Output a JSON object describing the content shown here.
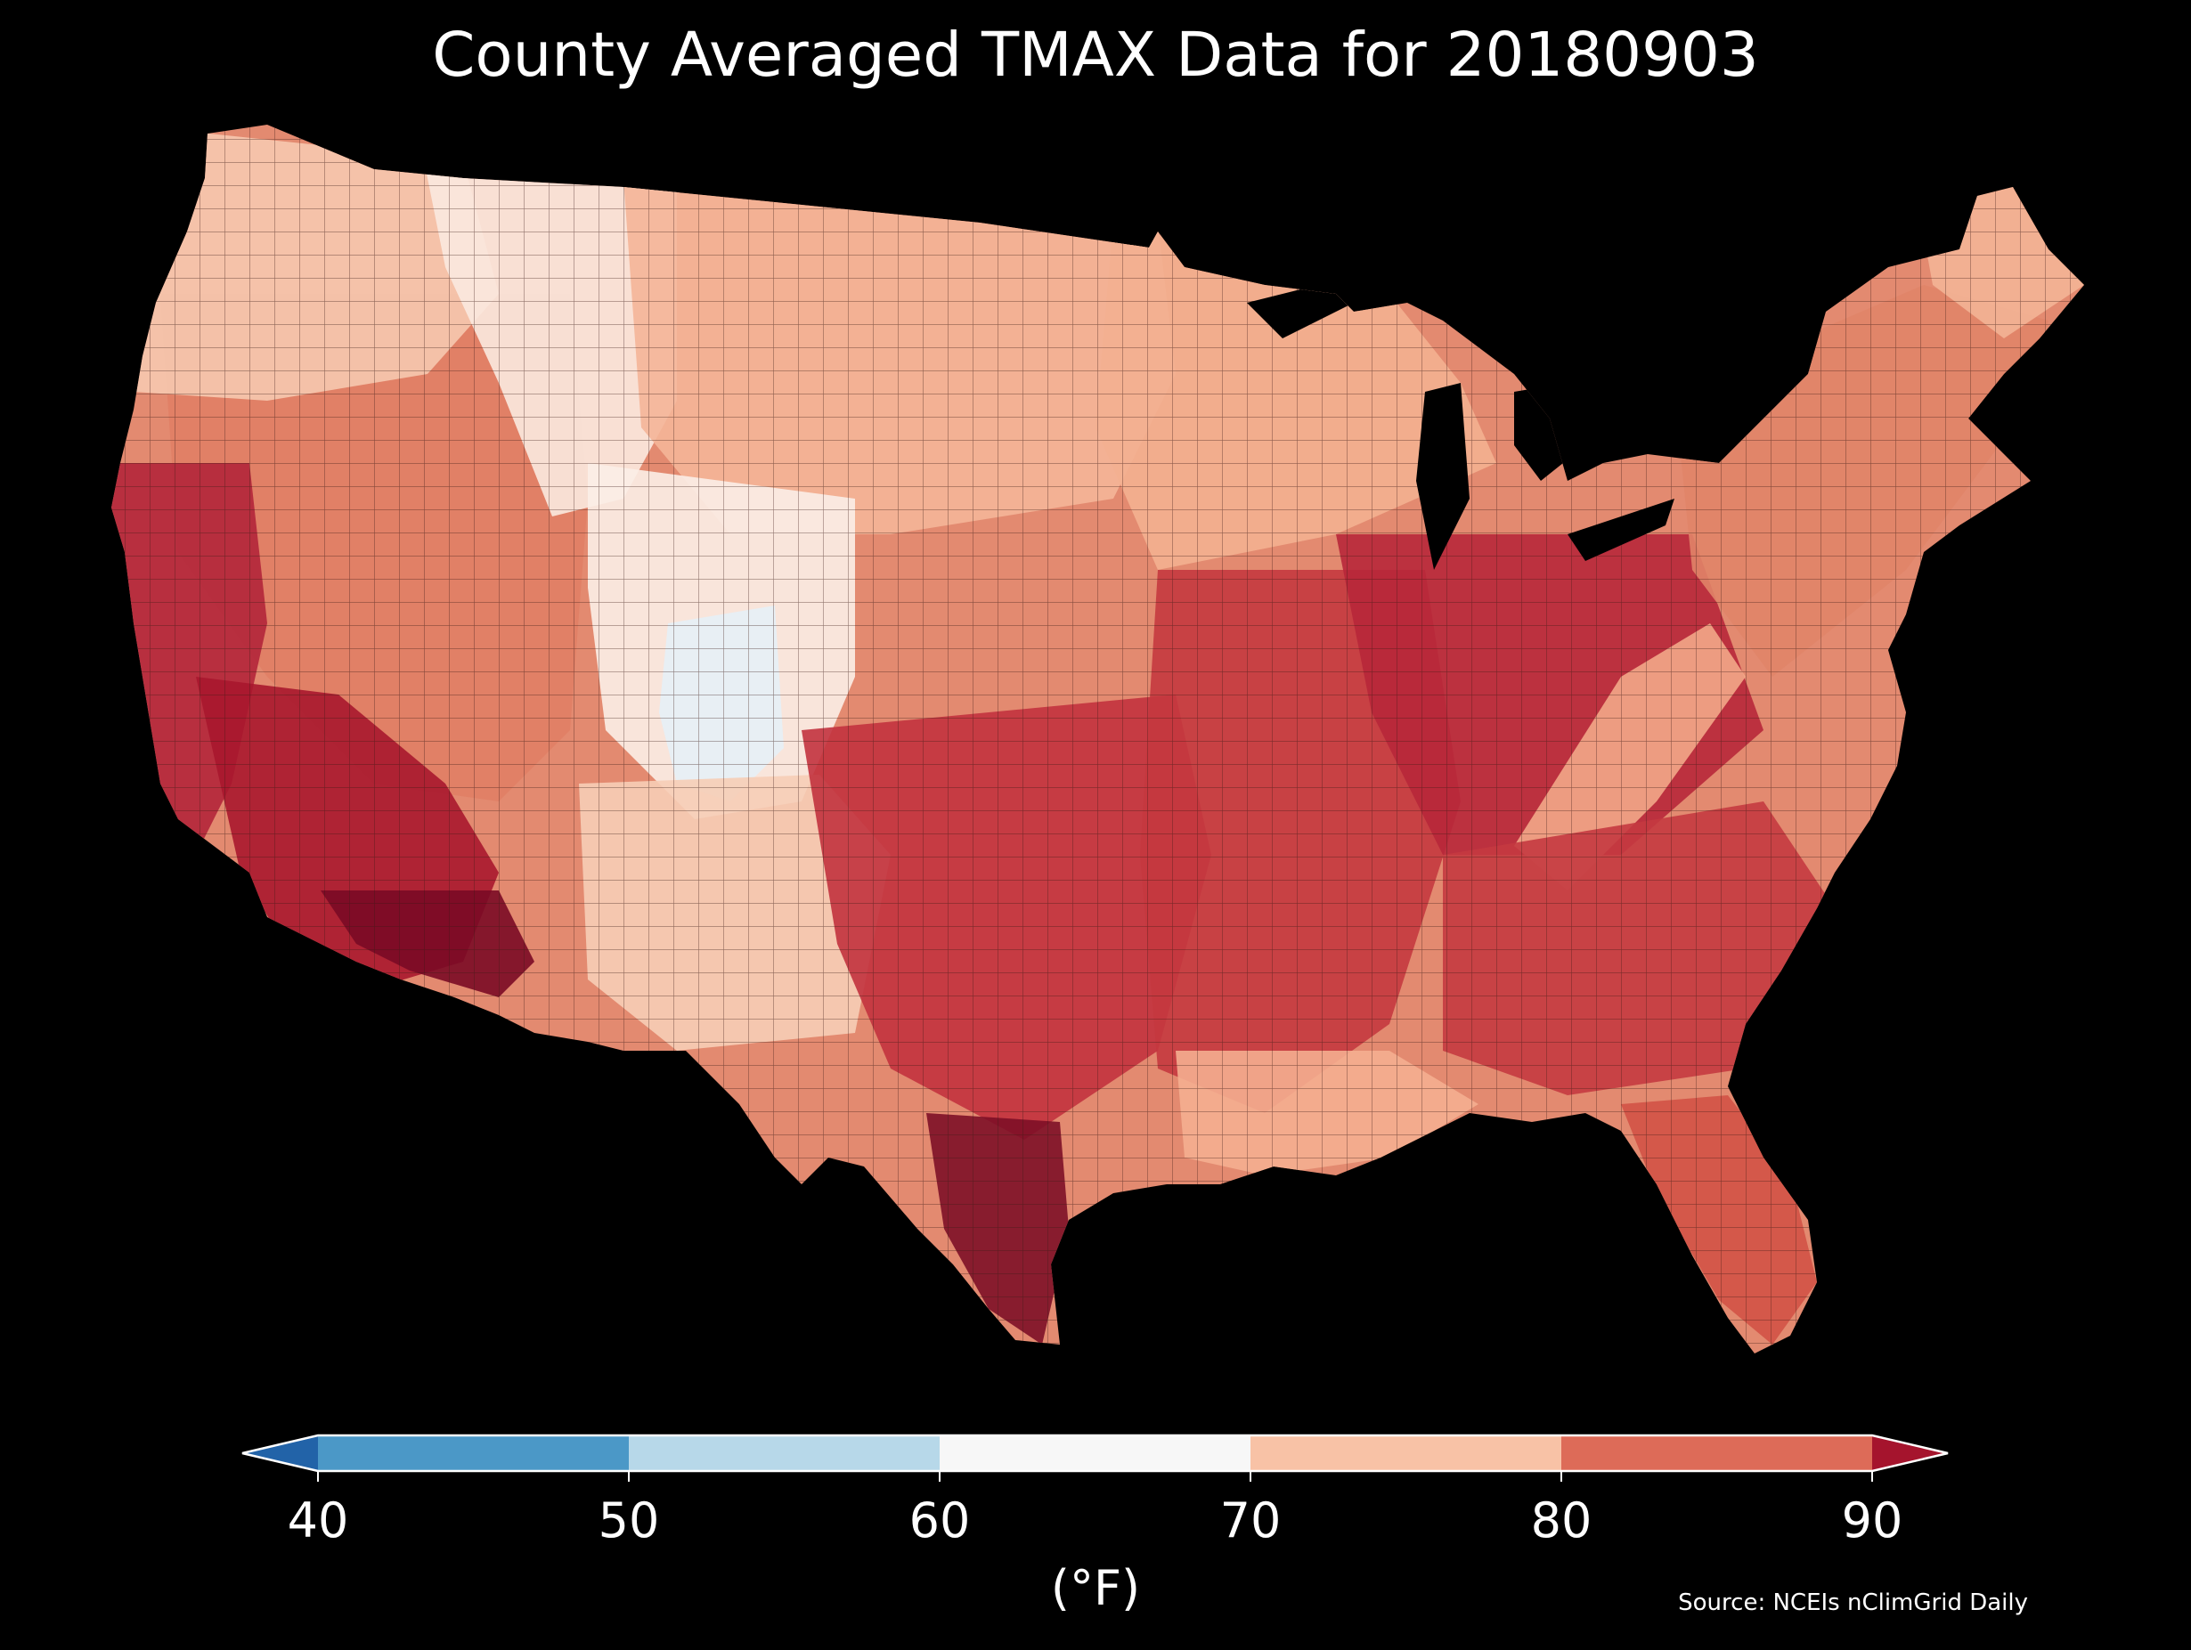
{
  "title": "County Averaged TMAX Data for 20180903",
  "source": "Source: NCEIs nClimGrid Daily",
  "colorbar": {
    "label": "(°F)",
    "ticks": [
      "40",
      "50",
      "60",
      "70",
      "80",
      "90"
    ],
    "bins": [
      {
        "min": 40,
        "max": 50,
        "color": "#4b98c7"
      },
      {
        "min": 50,
        "max": 60,
        "color": "#b7d8e9"
      },
      {
        "min": 60,
        "max": 70,
        "color": "#f7f7f7"
      },
      {
        "min": 70,
        "max": 80,
        "color": "#f8c2a6"
      },
      {
        "min": 80,
        "max": 90,
        "color": "#dd6b58"
      }
    ],
    "under_color": "#2263a8",
    "over_color": "#a5142d",
    "extend": "both"
  },
  "map_colors": {
    "background": "#000000",
    "lakes": "#000000",
    "base_land": "#e38a70",
    "county_borders": "#3a1a14"
  },
  "map_regions": [
    {
      "name": "pacific-northwest",
      "color": "#f6c8af"
    },
    {
      "name": "northern-rockies",
      "color": "#fbe9df"
    },
    {
      "name": "northern-plains",
      "color": "#f4b598"
    },
    {
      "name": "upper-midwest",
      "color": "#f3b090"
    },
    {
      "name": "great-basin",
      "color": "#e07e65"
    },
    {
      "name": "california-central-valley",
      "color": "#b2253a"
    },
    {
      "name": "desert-southwest",
      "color": "#a8172e"
    },
    {
      "name": "lower-colorado",
      "color": "#7a0a25"
    },
    {
      "name": "central-rockies",
      "color": "#fbeee7"
    },
    {
      "name": "colorado-high-country",
      "color": "#e5f0f6"
    },
    {
      "name": "new-mexico-plateau",
      "color": "#f6cdb6"
    },
    {
      "name": "southern-plains",
      "color": "#c2323e"
    },
    {
      "name": "south-texas",
      "color": "#7d0f27"
    },
    {
      "name": "mississippi-valley",
      "color": "#c4383f"
    },
    {
      "name": "ohio-valley",
      "color": "#b7273a"
    },
    {
      "name": "appalachians",
      "color": "#f2a888"
    },
    {
      "name": "southeast",
      "color": "#c43a40"
    },
    {
      "name": "gulf-coast",
      "color": "#f4ae90"
    },
    {
      "name": "florida",
      "color": "#d25246"
    },
    {
      "name": "northeast",
      "color": "#e08468"
    },
    {
      "name": "new-england-north",
      "color": "#f3b496"
    }
  ]
}
